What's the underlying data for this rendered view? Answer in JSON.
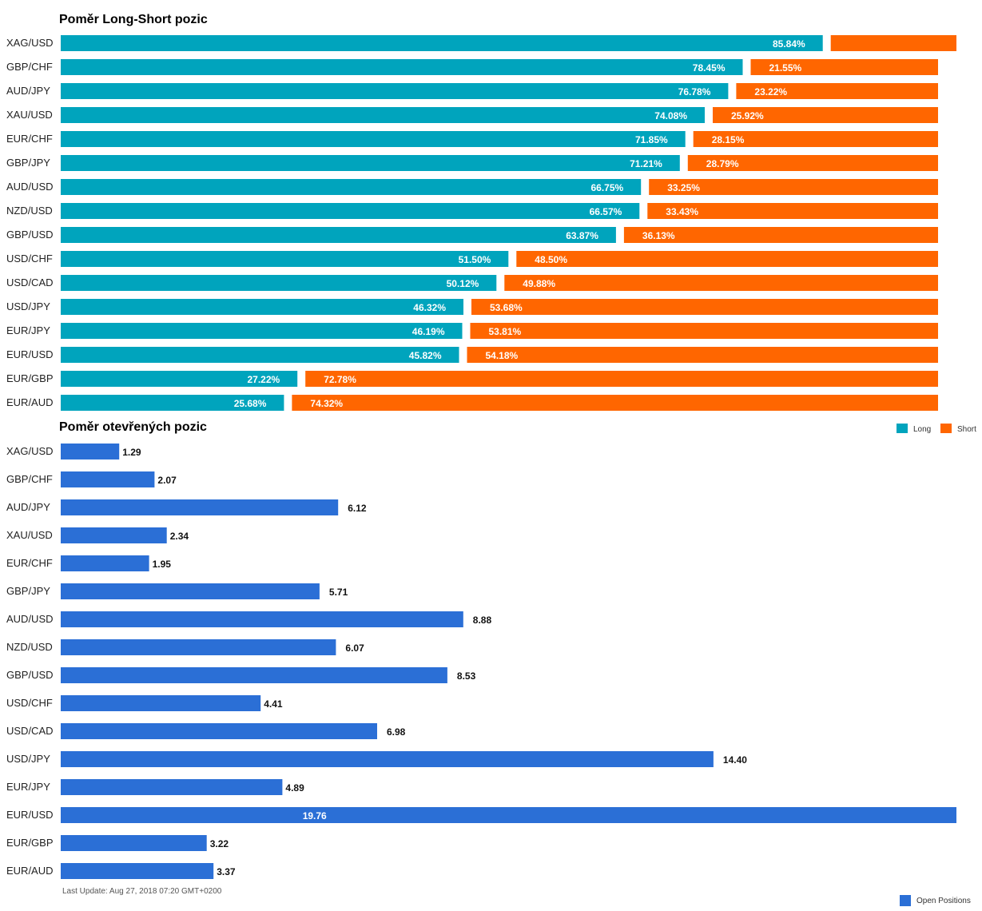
{
  "colors": {
    "long": "#00a4bd",
    "short": "#ff6600",
    "open": "#2b6fd6"
  },
  "chart_data": [
    {
      "type": "bar",
      "stacked": true,
      "orientation": "horizontal",
      "title": "Poměr Long-Short pozic",
      "categories": [
        "XAG/USD",
        "GBP/CHF",
        "AUD/JPY",
        "XAU/USD",
        "EUR/CHF",
        "GBP/JPY",
        "AUD/USD",
        "NZD/USD",
        "GBP/USD",
        "USD/CHF",
        "USD/CAD",
        "USD/JPY",
        "EUR/JPY",
        "EUR/USD",
        "EUR/GBP",
        "EUR/AUD"
      ],
      "series": [
        {
          "name": "Long",
          "values": [
            85.84,
            78.45,
            76.78,
            74.08,
            71.85,
            71.21,
            66.75,
            66.57,
            63.87,
            51.5,
            50.12,
            46.32,
            46.19,
            45.82,
            27.22,
            25.68
          ],
          "labels": [
            "85.84%",
            "78.45%",
            "76.78%",
            "74.08%",
            "71.85%",
            "71.21%",
            "66.75%",
            "66.57%",
            "63.87%",
            "51.50%",
            "50.12%",
            "46.32%",
            "46.19%",
            "45.82%",
            "27.22%",
            "25.68%"
          ]
        },
        {
          "name": "Short",
          "values": [
            14.16,
            21.55,
            23.22,
            25.92,
            28.15,
            28.79,
            33.25,
            33.43,
            36.13,
            48.5,
            49.88,
            53.68,
            53.81,
            54.18,
            72.78,
            74.32
          ],
          "labels": [
            "",
            "21.55%",
            "23.22%",
            "25.92%",
            "28.15%",
            "28.79%",
            "33.25%",
            "33.43%",
            "36.13%",
            "48.50%",
            "49.88%",
            "53.68%",
            "53.81%",
            "54.18%",
            "72.78%",
            "74.32%"
          ]
        }
      ],
      "legend": "bottom-right"
    },
    {
      "type": "bar",
      "orientation": "horizontal",
      "title": "Poměr otevřených pozic",
      "categories": [
        "XAG/USD",
        "GBP/CHF",
        "AUD/JPY",
        "XAU/USD",
        "EUR/CHF",
        "GBP/JPY",
        "AUD/USD",
        "NZD/USD",
        "GBP/USD",
        "USD/CHF",
        "USD/CAD",
        "USD/JPY",
        "EUR/JPY",
        "EUR/USD",
        "EUR/GBP",
        "EUR/AUD"
      ],
      "series": [
        {
          "name": "Open Positions",
          "values": [
            1.29,
            2.07,
            6.12,
            2.34,
            1.95,
            5.71,
            8.88,
            6.07,
            8.53,
            4.41,
            6.98,
            14.4,
            4.89,
            19.76,
            3.22,
            3.37
          ],
          "labels": [
            "1.29",
            "2.07",
            "6.12",
            "2.34",
            "1.95",
            "5.71",
            "8.88",
            "6.07",
            "8.53",
            "4.41",
            "6.98",
            "14.40",
            "4.89",
            "19.76",
            "3.22",
            "3.37"
          ]
        }
      ],
      "legend": "bottom-right"
    }
  ],
  "footer": {
    "last_update": "Last Update: Aug 27, 2018 07:20 GMT+0200"
  }
}
